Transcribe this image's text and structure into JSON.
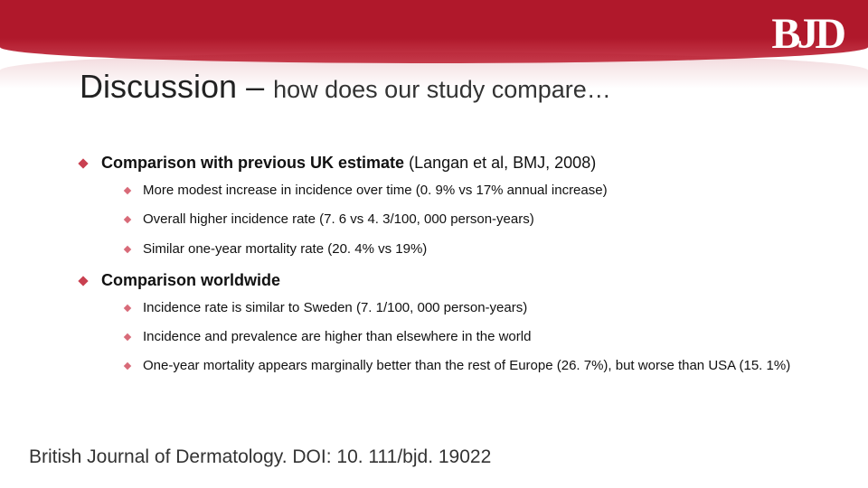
{
  "brand": {
    "logo_text": "BJD",
    "logo_color": "#ffffff"
  },
  "colors": {
    "header_bg": "#b0182b",
    "bullet_lvl1": "#c94050",
    "bullet_lvl2": "#d86a78",
    "text": "#111111",
    "background": "#ffffff"
  },
  "title": {
    "main": "Discussion",
    "separator": " – ",
    "subtitle": "how does our study compare…",
    "main_fontsize": 36,
    "sub_fontsize": 27
  },
  "sections": [
    {
      "label": "Comparison with previous UK estimate",
      "suffix": " (Langan et al, BMJ, 2008)",
      "items": [
        "More modest increase in incidence over time (0. 9% vs 17% annual increase)",
        "Overall higher incidence rate (7. 6 vs 4. 3/100, 000 person-years)",
        "Similar one-year mortality rate (20. 4% vs 19%)"
      ]
    },
    {
      "label": "Comparison worldwide",
      "suffix": "",
      "items": [
        "Incidence rate is similar to Sweden (7. 1/100, 000 person-years)",
        "Incidence and prevalence are higher than elsewhere in the world",
        "One-year mortality appears marginally better than the rest of Europe (26. 7%), but worse than USA (15. 1%)"
      ]
    }
  ],
  "footer": "British Journal of Dermatology. DOI: 10. 111/bjd. 19022",
  "typography": {
    "body_font": "Arial",
    "lvl1_fontsize": 18,
    "lvl2_fontsize": 15,
    "footer_fontsize": 21
  }
}
